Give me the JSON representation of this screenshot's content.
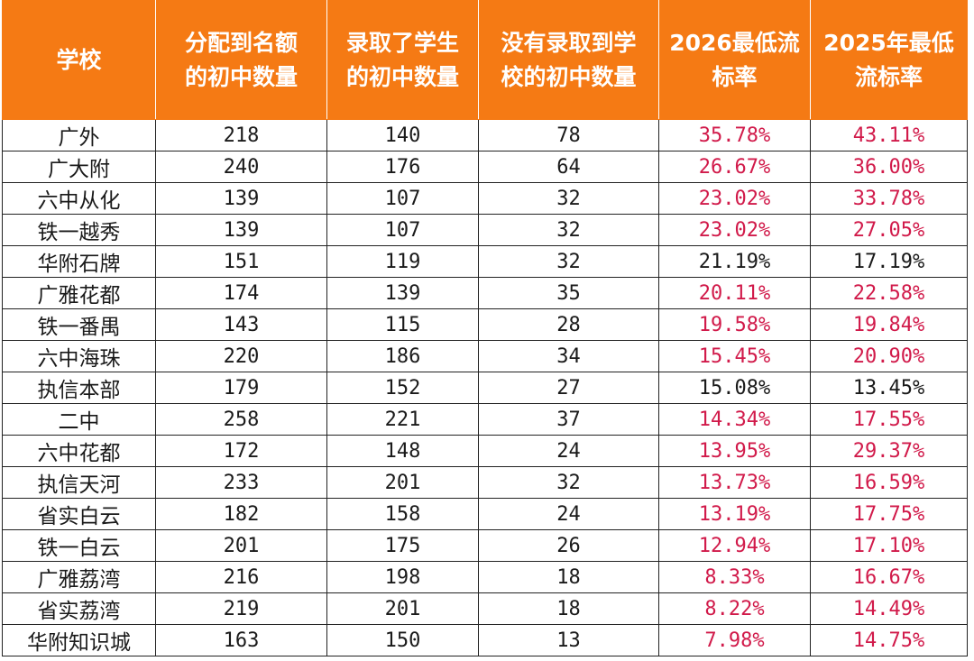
{
  "colors": {
    "header_bg": "#f57a14",
    "header_text": "#ffffff",
    "highlight_red": "#d11a4a",
    "body_text": "#1a1a1a"
  },
  "table": {
    "headers": [
      "学校",
      "分配到名额\n的初中数量",
      "录取了学生\n的初中数量",
      "没有录取到学\n校的初中数量",
      "2026最低流\n标率",
      "2025年最低\n流标率"
    ],
    "rows": [
      {
        "cells": [
          "广外",
          "218",
          "140",
          "78",
          "35.78%",
          "43.11%"
        ],
        "red": [
          false,
          false,
          false,
          false,
          true,
          true
        ]
      },
      {
        "cells": [
          "广大附",
          "240",
          "176",
          "64",
          "26.67%",
          "36.00%"
        ],
        "red": [
          false,
          false,
          false,
          false,
          true,
          true
        ]
      },
      {
        "cells": [
          "六中从化",
          "139",
          "107",
          "32",
          "23.02%",
          "33.78%"
        ],
        "red": [
          false,
          false,
          false,
          false,
          true,
          true
        ]
      },
      {
        "cells": [
          "铁一越秀",
          "139",
          "107",
          "32",
          "23.02%",
          "27.05%"
        ],
        "red": [
          false,
          false,
          false,
          false,
          true,
          true
        ]
      },
      {
        "cells": [
          "华附石牌",
          "151",
          "119",
          "32",
          "21.19%",
          "17.19%"
        ],
        "red": [
          false,
          false,
          false,
          false,
          false,
          false
        ]
      },
      {
        "cells": [
          "广雅花都",
          "174",
          "139",
          "35",
          "20.11%",
          "22.58%"
        ],
        "red": [
          false,
          false,
          false,
          false,
          true,
          true
        ]
      },
      {
        "cells": [
          "铁一番禺",
          "143",
          "115",
          "28",
          "19.58%",
          "19.84%"
        ],
        "red": [
          false,
          false,
          false,
          false,
          true,
          true
        ]
      },
      {
        "cells": [
          "六中海珠",
          "220",
          "186",
          "34",
          "15.45%",
          "20.90%"
        ],
        "red": [
          false,
          false,
          false,
          false,
          true,
          true
        ]
      },
      {
        "cells": [
          "执信本部",
          "179",
          "152",
          "27",
          "15.08%",
          "13.45%"
        ],
        "red": [
          false,
          false,
          false,
          false,
          false,
          false
        ]
      },
      {
        "cells": [
          "二中",
          "258",
          "221",
          "37",
          "14.34%",
          "17.55%"
        ],
        "red": [
          false,
          false,
          false,
          false,
          true,
          true
        ]
      },
      {
        "cells": [
          "六中花都",
          "172",
          "148",
          "24",
          "13.95%",
          "29.37%"
        ],
        "red": [
          false,
          false,
          false,
          false,
          true,
          true
        ]
      },
      {
        "cells": [
          "执信天河",
          "233",
          "201",
          "32",
          "13.73%",
          "16.59%"
        ],
        "red": [
          false,
          false,
          false,
          false,
          true,
          true
        ]
      },
      {
        "cells": [
          "省实白云",
          "182",
          "158",
          "24",
          "13.19%",
          "17.75%"
        ],
        "red": [
          false,
          false,
          false,
          false,
          true,
          true
        ]
      },
      {
        "cells": [
          "铁一白云",
          "201",
          "175",
          "26",
          "12.94%",
          "17.10%"
        ],
        "red": [
          false,
          false,
          false,
          false,
          true,
          true
        ]
      },
      {
        "cells": [
          "广雅荔湾",
          "216",
          "198",
          "18",
          "8.33%",
          "16.67%"
        ],
        "red": [
          false,
          false,
          false,
          false,
          true,
          true
        ]
      },
      {
        "cells": [
          "省实荔湾",
          "219",
          "201",
          "18",
          "8.22%",
          "14.49%"
        ],
        "red": [
          false,
          false,
          false,
          false,
          true,
          true
        ]
      },
      {
        "cells": [
          "华附知识城",
          "163",
          "150",
          "13",
          "7.98%",
          "14.75%"
        ],
        "red": [
          false,
          false,
          false,
          false,
          true,
          true
        ]
      }
    ]
  }
}
